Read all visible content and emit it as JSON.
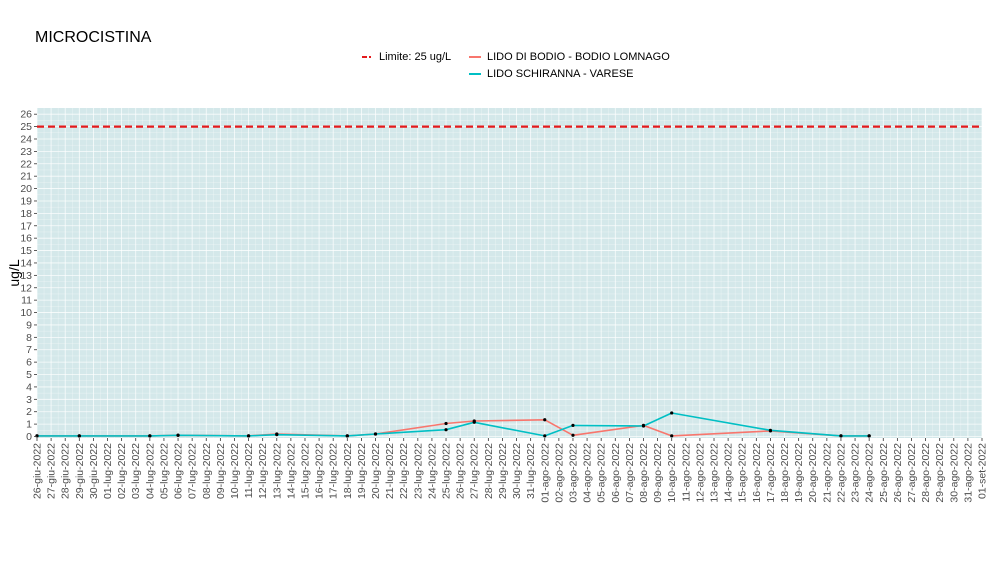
{
  "chart_data": {
    "type": "line",
    "title": "MICROCISTINA",
    "xlabel": "",
    "ylabel": "ug/L",
    "ylim": [
      0,
      26
    ],
    "y_ticks": [
      0,
      1,
      2,
      3,
      4,
      5,
      6,
      7,
      8,
      9,
      10,
      11,
      12,
      13,
      14,
      15,
      16,
      17,
      18,
      19,
      20,
      21,
      22,
      23,
      24,
      25,
      26
    ],
    "x_range": [
      "2022-06-26",
      "2022-09-01"
    ],
    "x_ticks": [
      "26-giu-2022",
      "27-giu-2022",
      "28-giu-2022",
      "29-giu-2022",
      "30-giu-2022",
      "01-lug-2022",
      "02-lug-2022",
      "03-lug-2022",
      "04-lug-2022",
      "05-lug-2022",
      "06-lug-2022",
      "07-lug-2022",
      "08-lug-2022",
      "09-lug-2022",
      "10-lug-2022",
      "11-lug-2022",
      "12-lug-2022",
      "13-lug-2022",
      "14-lug-2022",
      "15-lug-2022",
      "16-lug-2022",
      "17-lug-2022",
      "18-lug-2022",
      "19-lug-2022",
      "20-lug-2022",
      "21-lug-2022",
      "22-lug-2022",
      "23-lug-2022",
      "24-lug-2022",
      "25-lug-2022",
      "26-lug-2022",
      "27-lug-2022",
      "28-lug-2022",
      "29-lug-2022",
      "30-lug-2022",
      "31-lug-2022",
      "01-ago-2022",
      "02-ago-2022",
      "03-ago-2022",
      "04-ago-2022",
      "05-ago-2022",
      "06-ago-2022",
      "07-ago-2022",
      "08-ago-2022",
      "09-ago-2022",
      "10-ago-2022",
      "11-ago-2022",
      "12-ago-2022",
      "13-ago-2022",
      "14-ago-2022",
      "15-ago-2022",
      "16-ago-2022",
      "17-ago-2022",
      "18-ago-2022",
      "19-ago-2022",
      "20-ago-2022",
      "21-ago-2022",
      "22-ago-2022",
      "23-ago-2022",
      "24-ago-2022",
      "25-ago-2022",
      "26-ago-2022",
      "27-ago-2022",
      "28-ago-2022",
      "29-ago-2022",
      "30-ago-2022",
      "31-ago-2022",
      "01-set-2022"
    ],
    "grid": true,
    "legend_position": "top",
    "background_color": "#d4e8ea",
    "limit": {
      "label": "Limite: 25 ug/L",
      "value": 25,
      "color": "#e41a1c",
      "style": "dashed"
    },
    "series": [
      {
        "name": "LIDO DI BODIO - BODIO LOMNAGO",
        "color": "#f8766d",
        "points": [
          {
            "x": "2022-06-26",
            "y": 0.05
          },
          {
            "x": "2022-06-29",
            "y": 0.05
          },
          {
            "x": "2022-07-04",
            "y": 0.05
          },
          {
            "x": "2022-07-06",
            "y": 0.1
          },
          {
            "x": "2022-07-11",
            "y": 0.05
          },
          {
            "x": "2022-07-13",
            "y": 0.2
          },
          {
            "x": "2022-07-18",
            "y": 0.05
          },
          {
            "x": "2022-07-20",
            "y": 0.2
          },
          {
            "x": "2022-07-25",
            "y": 1.05
          },
          {
            "x": "2022-07-27",
            "y": 1.25
          },
          {
            "x": "2022-08-01",
            "y": 1.35
          },
          {
            "x": "2022-08-03",
            "y": 0.1
          },
          {
            "x": "2022-08-08",
            "y": 0.9
          },
          {
            "x": "2022-08-10",
            "y": 0.05
          },
          {
            "x": "2022-08-17",
            "y": 0.45
          },
          {
            "x": "2022-08-22",
            "y": 0.05
          },
          {
            "x": "2022-08-24",
            "y": 0.05
          }
        ]
      },
      {
        "name": "LIDO SCHIRANNA - VARESE",
        "color": "#00bfc4",
        "points": [
          {
            "x": "2022-06-26",
            "y": 0.05
          },
          {
            "x": "2022-06-29",
            "y": 0.05
          },
          {
            "x": "2022-07-04",
            "y": 0.05
          },
          {
            "x": "2022-07-06",
            "y": 0.1
          },
          {
            "x": "2022-07-11",
            "y": 0.05
          },
          {
            "x": "2022-07-13",
            "y": 0.15
          },
          {
            "x": "2022-07-18",
            "y": 0.05
          },
          {
            "x": "2022-07-20",
            "y": 0.2
          },
          {
            "x": "2022-07-25",
            "y": 0.55
          },
          {
            "x": "2022-07-27",
            "y": 1.15
          },
          {
            "x": "2022-08-01",
            "y": 0.05
          },
          {
            "x": "2022-08-03",
            "y": 0.9
          },
          {
            "x": "2022-08-08",
            "y": 0.85
          },
          {
            "x": "2022-08-10",
            "y": 1.9
          },
          {
            "x": "2022-08-17",
            "y": 0.5
          },
          {
            "x": "2022-08-22",
            "y": 0.05
          },
          {
            "x": "2022-08-24",
            "y": 0.05
          }
        ]
      }
    ]
  }
}
